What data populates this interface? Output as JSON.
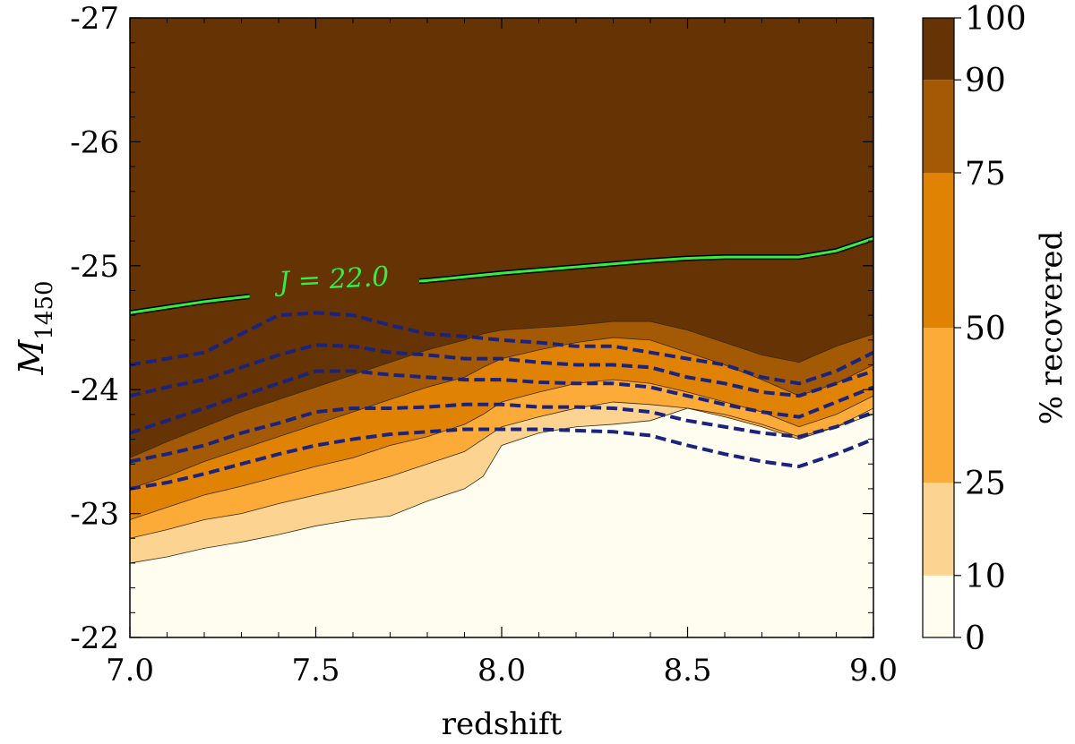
{
  "chart_data": {
    "type": "contourf",
    "title": "",
    "xlabel": "redshift",
    "ylabel": "M",
    "ylabel_subscript": "1450",
    "xlim": [
      7.0,
      9.0
    ],
    "ylim": [
      -22,
      -27
    ],
    "x_ticks": [
      7.0,
      7.5,
      8.0,
      8.5,
      9.0
    ],
    "x_tick_labels": [
      "7.0",
      "7.5",
      "8.0",
      "8.5",
      "9.0"
    ],
    "y_ticks": [
      -27,
      -26,
      -25,
      -24,
      -23,
      -22
    ],
    "y_tick_labels": [
      "-27",
      "-26",
      "-25",
      "-24",
      "-23",
      "-22"
    ],
    "colorbar": {
      "label": "% recovered",
      "levels": [
        0,
        10,
        25,
        50,
        75,
        90,
        100
      ],
      "level_labels": [
        "0",
        "10",
        "25",
        "50",
        "75",
        "90",
        "100"
      ],
      "colors": [
        "#fefdf0",
        "#fdd392",
        "#fcab38",
        "#e08305",
        "#a45a04",
        "#653304"
      ]
    },
    "completeness_boundaries": {
      "x": [
        7.0,
        7.1,
        7.2,
        7.3,
        7.4,
        7.5,
        7.6,
        7.7,
        7.8,
        7.9,
        7.95,
        8.0,
        8.1,
        8.2,
        8.3,
        8.4,
        8.5,
        8.6,
        8.7,
        8.8,
        8.9,
        9.0
      ],
      "boundaries": [
        {
          "level": 10,
          "y": [
            -22.6,
            -22.65,
            -22.72,
            -22.77,
            -22.83,
            -22.9,
            -22.95,
            -22.98,
            -23.1,
            -23.2,
            -23.3,
            -23.55,
            -23.65,
            -23.7,
            -23.72,
            -23.75,
            -23.85,
            -23.8,
            -23.72,
            -23.62,
            -23.7,
            -23.8
          ]
        },
        {
          "level": 25,
          "y": [
            -22.8,
            -22.87,
            -22.95,
            -23.0,
            -23.08,
            -23.15,
            -23.22,
            -23.3,
            -23.4,
            -23.5,
            -23.6,
            -23.7,
            -23.78,
            -23.85,
            -23.9,
            -23.88,
            -23.85,
            -23.78,
            -23.7,
            -23.6,
            -23.7,
            -23.85
          ]
        },
        {
          "level": 50,
          "y": [
            -22.95,
            -23.05,
            -23.15,
            -23.22,
            -23.3,
            -23.38,
            -23.45,
            -23.55,
            -23.62,
            -23.72,
            -23.8,
            -23.9,
            -23.98,
            -24.05,
            -24.08,
            -24.05,
            -23.98,
            -23.9,
            -23.82,
            -23.7,
            -23.8,
            -23.95
          ]
        },
        {
          "level": 75,
          "y": [
            -23.2,
            -23.3,
            -23.42,
            -23.52,
            -23.62,
            -23.72,
            -23.82,
            -23.92,
            -24.02,
            -24.1,
            -24.18,
            -24.25,
            -24.32,
            -24.38,
            -24.42,
            -24.4,
            -24.3,
            -24.2,
            -24.08,
            -23.95,
            -24.05,
            -24.2
          ]
        },
        {
          "level": 90,
          "y": [
            -23.45,
            -23.58,
            -23.7,
            -23.82,
            -23.92,
            -24.02,
            -24.12,
            -24.22,
            -24.32,
            -24.4,
            -24.45,
            -24.48,
            -24.5,
            -24.52,
            -24.55,
            -24.55,
            -24.48,
            -24.38,
            -24.28,
            -24.22,
            -24.35,
            -24.45
          ]
        }
      ]
    },
    "dashed_contours": {
      "color": "#1a237e",
      "x": [
        7.0,
        7.1,
        7.2,
        7.3,
        7.4,
        7.5,
        7.6,
        7.7,
        7.8,
        7.9,
        8.0,
        8.1,
        8.2,
        8.3,
        8.4,
        8.5,
        8.6,
        8.7,
        8.8,
        8.9,
        9.0
      ],
      "lines": [
        {
          "y": [
            -24.2,
            -24.25,
            -24.3,
            -24.45,
            -24.6,
            -24.62,
            -24.6,
            -24.52,
            -24.45,
            -24.43,
            -24.4,
            -24.38,
            -24.35,
            -24.35,
            -24.3,
            -24.25,
            -24.2,
            -24.1,
            -24.05,
            -24.15,
            -24.3
          ]
        },
        {
          "y": [
            -23.95,
            -24.02,
            -24.08,
            -24.18,
            -24.28,
            -24.36,
            -24.35,
            -24.3,
            -24.28,
            -24.25,
            -24.25,
            -24.22,
            -24.2,
            -24.2,
            -24.18,
            -24.1,
            -24.05,
            -23.98,
            -23.95,
            -24.05,
            -24.15
          ]
        },
        {
          "y": [
            -23.65,
            -23.75,
            -23.85,
            -23.95,
            -24.05,
            -24.15,
            -24.15,
            -24.12,
            -24.1,
            -24.08,
            -24.08,
            -24.06,
            -24.05,
            -24.05,
            -24.02,
            -23.95,
            -23.88,
            -23.82,
            -23.78,
            -23.9,
            -24.02
          ]
        },
        {
          "y": [
            -23.42,
            -23.48,
            -23.55,
            -23.65,
            -23.73,
            -23.82,
            -23.85,
            -23.85,
            -23.86,
            -23.88,
            -23.88,
            -23.86,
            -23.86,
            -23.85,
            -23.82,
            -23.75,
            -23.7,
            -23.65,
            -23.62,
            -23.7,
            -23.82
          ]
        },
        {
          "y": [
            -23.2,
            -23.25,
            -23.32,
            -23.4,
            -23.48,
            -23.55,
            -23.6,
            -23.64,
            -23.66,
            -23.68,
            -23.68,
            -23.68,
            -23.67,
            -23.66,
            -23.63,
            -23.55,
            -23.48,
            -23.42,
            -23.38,
            -23.48,
            -23.6
          ]
        }
      ]
    },
    "magnitude_limit_line": {
      "label": "J = 22.0",
      "color": "#33ee44",
      "x": [
        7.0,
        7.2,
        7.4,
        7.6,
        7.8,
        8.0,
        8.2,
        8.4,
        8.5,
        8.6,
        8.8,
        8.9,
        9.0
      ],
      "y": [
        -24.62,
        -24.71,
        -24.78,
        -24.84,
        -24.88,
        -24.94,
        -24.99,
        -25.04,
        -25.06,
        -25.07,
        -25.07,
        -25.12,
        -25.22
      ]
    }
  }
}
